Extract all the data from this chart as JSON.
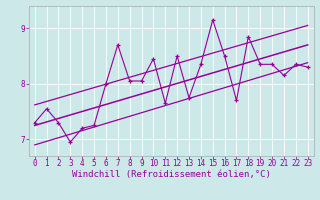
{
  "xlabel": "Windchill (Refroidissement éolien,°C)",
  "bg_color": "#cce8e8",
  "line_color": "#990099",
  "x_data": [
    0,
    1,
    2,
    3,
    4,
    5,
    6,
    7,
    8,
    9,
    10,
    11,
    12,
    13,
    14,
    15,
    16,
    17,
    18,
    19,
    20,
    21,
    22,
    23
  ],
  "y_data": [
    7.3,
    7.55,
    7.3,
    6.95,
    7.2,
    7.25,
    8.0,
    8.7,
    8.05,
    8.05,
    8.45,
    7.65,
    8.5,
    7.75,
    8.35,
    9.15,
    8.5,
    7.7,
    8.85,
    8.35,
    8.35,
    8.15,
    8.35,
    8.3
  ],
  "upper_line": [
    [
      0,
      7.62
    ],
    [
      23,
      9.05
    ]
  ],
  "lower_line": [
    [
      0,
      6.9
    ],
    [
      23,
      8.38
    ]
  ],
  "mid_line": [
    [
      0,
      7.25
    ],
    [
      23,
      8.7
    ]
  ],
  "ylim": [
    6.7,
    9.4
  ],
  "xlim": [
    -0.5,
    23.5
  ],
  "yticks": [
    7,
    8,
    9
  ],
  "xticks": [
    0,
    1,
    2,
    3,
    4,
    5,
    6,
    7,
    8,
    9,
    10,
    11,
    12,
    13,
    14,
    15,
    16,
    17,
    18,
    19,
    20,
    21,
    22,
    23
  ],
  "tick_fontsize": 5.5,
  "xlabel_fontsize": 6.5
}
